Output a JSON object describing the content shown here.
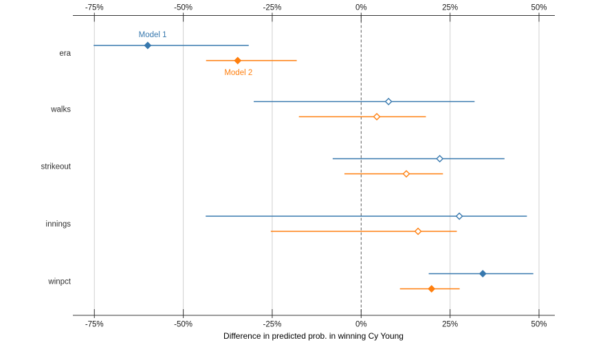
{
  "chart_data": {
    "type": "scatter",
    "subtype": "coefficient-interval-plot",
    "title": "",
    "xlabel": "Difference in predicted prob. in winning Cy Young",
    "ylabel": "",
    "grid": true,
    "zero_line": {
      "value": 0,
      "style": "dashed",
      "color": "#595959"
    },
    "xlim": [
      -81,
      54.5
    ],
    "x_axis": {
      "ticks": [
        {
          "value": -75,
          "label": "-75%"
        },
        {
          "value": -50,
          "label": "-50%"
        },
        {
          "value": -25,
          "label": "-25%"
        },
        {
          "value": 0,
          "label": "0%"
        },
        {
          "value": 25,
          "label": "25%"
        },
        {
          "value": 50,
          "label": "50%"
        }
      ],
      "shown_top_and_bottom": true
    },
    "categories": [
      "era",
      "walks",
      "strikeout",
      "innings",
      "winpct"
    ],
    "series": [
      {
        "name": "Model 1",
        "color": "#3778ae",
        "marker": "diamond",
        "intervals": [
          {
            "category": "era",
            "low": -75.2,
            "est": -60.0,
            "high": -31.6,
            "filled": true
          },
          {
            "category": "walks",
            "low": -30.2,
            "est": 7.7,
            "high": 31.9,
            "filled": false
          },
          {
            "category": "strikeout",
            "low": -8.0,
            "est": 22.1,
            "high": 40.3,
            "filled": false
          },
          {
            "category": "innings",
            "low": -43.7,
            "est": 27.6,
            "high": 46.6,
            "filled": false
          },
          {
            "category": "winpct",
            "low": 19.0,
            "est": 34.2,
            "high": 48.4,
            "filled": true
          }
        ]
      },
      {
        "name": "Model 2",
        "color": "#ff7f0e",
        "marker": "diamond",
        "intervals": [
          {
            "category": "era",
            "low": -43.6,
            "est": -34.7,
            "high": -18.1,
            "filled": true
          },
          {
            "category": "walks",
            "low": -17.5,
            "est": 4.4,
            "high": 18.2,
            "filled": false
          },
          {
            "category": "strikeout",
            "low": -4.7,
            "est": 12.7,
            "high": 23.0,
            "filled": false
          },
          {
            "category": "innings",
            "low": -25.4,
            "est": 16.0,
            "high": 26.9,
            "filled": false
          },
          {
            "category": "winpct",
            "low": 10.9,
            "est": 19.8,
            "high": 27.7,
            "filled": true
          }
        ]
      }
    ],
    "annotations": [
      {
        "text": "Model 1",
        "series": "Model 1",
        "category": "era",
        "x": -58.6,
        "placement": "above"
      },
      {
        "text": "Model 2",
        "series": "Model 2",
        "category": "era",
        "x": -34.5,
        "placement": "below"
      }
    ],
    "legend_position": "in-plot-annotations"
  }
}
